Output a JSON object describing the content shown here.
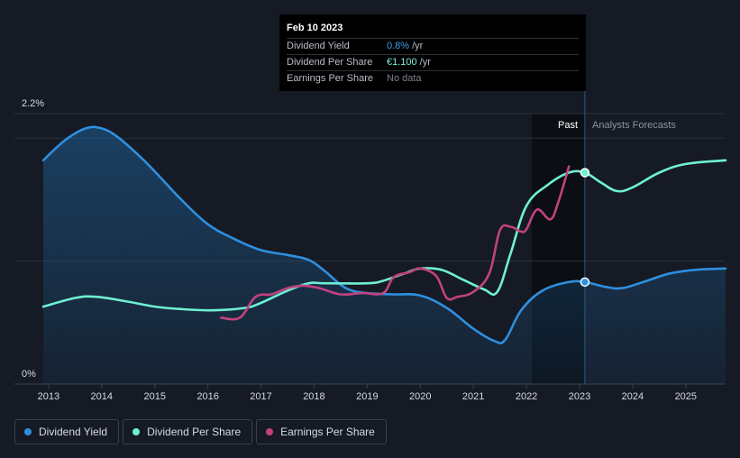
{
  "tooltip": {
    "date": "Feb 10 2023",
    "rows": [
      {
        "label": "Dividend Yield",
        "value": "0.8%",
        "unit": "/yr"
      },
      {
        "label": "Dividend Per Share",
        "value": "€1.100",
        "unit": "/yr"
      },
      {
        "label": "Earnings Per Share",
        "value": "No data",
        "unit": ""
      }
    ]
  },
  "legend": [
    {
      "label": "Dividend Yield",
      "color": "#2f8fdf"
    },
    {
      "label": "Dividend Per Share",
      "color": "#6ef0d2"
    },
    {
      "label": "Earnings Per Share",
      "color": "#c2427f"
    }
  ],
  "chart_data": {
    "type": "line",
    "title": "",
    "xlabel": "",
    "ylabel": "",
    "x_ticks": [
      "2013",
      "2014",
      "2015",
      "2016",
      "2017",
      "2018",
      "2019",
      "2020",
      "2021",
      "2022",
      "2023",
      "2024",
      "2025"
    ],
    "y_axis_labels": {
      "top": "2.2%",
      "bottom": "0%"
    },
    "ylim": [
      0,
      2.2
    ],
    "xlim": [
      2012.9,
      2025.75
    ],
    "region_labels": {
      "past": "Past",
      "forecast": "Analysts Forecasts"
    },
    "forecast_start": 2023.1,
    "highlight_start": 2022.1,
    "dps_ylim": [
      0,
      2.0
    ],
    "series": [
      {
        "name": "Dividend Yield",
        "color": "#2f8fdf",
        "points": [
          [
            2012.9,
            1.82
          ],
          [
            2013.3,
            1.98
          ],
          [
            2013.7,
            2.08
          ],
          [
            2014.0,
            2.08
          ],
          [
            2014.3,
            2.01
          ],
          [
            2014.7,
            1.86
          ],
          [
            2015.0,
            1.73
          ],
          [
            2015.5,
            1.5
          ],
          [
            2016.0,
            1.3
          ],
          [
            2016.5,
            1.18
          ],
          [
            2017.0,
            1.09
          ],
          [
            2017.5,
            1.05
          ],
          [
            2017.9,
            1.01
          ],
          [
            2018.2,
            0.92
          ],
          [
            2018.6,
            0.78
          ],
          [
            2019.0,
            0.74
          ],
          [
            2019.5,
            0.73
          ],
          [
            2020.0,
            0.72
          ],
          [
            2020.5,
            0.62
          ],
          [
            2021.0,
            0.45
          ],
          [
            2021.4,
            0.35
          ],
          [
            2021.6,
            0.36
          ],
          [
            2021.9,
            0.6
          ],
          [
            2022.3,
            0.76
          ],
          [
            2022.8,
            0.83
          ],
          [
            2023.1,
            0.83
          ],
          [
            2023.5,
            0.79
          ],
          [
            2023.8,
            0.78
          ],
          [
            2024.2,
            0.83
          ],
          [
            2024.7,
            0.9
          ],
          [
            2025.2,
            0.93
          ],
          [
            2025.75,
            0.94
          ]
        ]
      },
      {
        "name": "Dividend Per Share",
        "color": "#6ef0d2",
        "points": [
          [
            2012.9,
            0.63
          ],
          [
            2013.5,
            0.7
          ],
          [
            2013.9,
            0.71
          ],
          [
            2014.5,
            0.67
          ],
          [
            2015.0,
            0.63
          ],
          [
            2015.5,
            0.61
          ],
          [
            2016.1,
            0.6
          ],
          [
            2016.7,
            0.62
          ],
          [
            2017.0,
            0.66
          ],
          [
            2017.5,
            0.76
          ],
          [
            2017.9,
            0.82
          ],
          [
            2018.2,
            0.82
          ],
          [
            2019.0,
            0.82
          ],
          [
            2019.3,
            0.84
          ],
          [
            2019.7,
            0.9
          ],
          [
            2020.0,
            0.94
          ],
          [
            2020.4,
            0.93
          ],
          [
            2020.8,
            0.85
          ],
          [
            2021.2,
            0.77
          ],
          [
            2021.45,
            0.75
          ],
          [
            2021.7,
            1.06
          ],
          [
            2022.0,
            1.45
          ],
          [
            2022.4,
            1.62
          ],
          [
            2022.8,
            1.72
          ],
          [
            2023.1,
            1.72
          ],
          [
            2023.4,
            1.64
          ],
          [
            2023.7,
            1.57
          ],
          [
            2024.0,
            1.6
          ],
          [
            2024.5,
            1.72
          ],
          [
            2025.0,
            1.79
          ],
          [
            2025.75,
            1.82
          ]
        ]
      },
      {
        "name": "Earnings Per Share",
        "color": "#c2427f",
        "points": [
          [
            2016.25,
            0.54
          ],
          [
            2016.6,
            0.54
          ],
          [
            2016.9,
            0.71
          ],
          [
            2017.2,
            0.73
          ],
          [
            2017.5,
            0.78
          ],
          [
            2017.8,
            0.8
          ],
          [
            2018.1,
            0.78
          ],
          [
            2018.5,
            0.73
          ],
          [
            2018.9,
            0.74
          ],
          [
            2019.3,
            0.74
          ],
          [
            2019.5,
            0.87
          ],
          [
            2019.8,
            0.91
          ],
          [
            2020.0,
            0.94
          ],
          [
            2020.3,
            0.88
          ],
          [
            2020.5,
            0.7
          ],
          [
            2020.7,
            0.71
          ],
          [
            2021.0,
            0.75
          ],
          [
            2021.3,
            0.9
          ],
          [
            2021.5,
            1.25
          ],
          [
            2021.7,
            1.28
          ],
          [
            2021.9,
            1.24
          ],
          [
            2022.0,
            1.26
          ],
          [
            2022.2,
            1.42
          ],
          [
            2022.45,
            1.34
          ],
          [
            2022.6,
            1.48
          ],
          [
            2022.8,
            1.77
          ]
        ]
      }
    ],
    "markers": [
      {
        "series": "Dividend Yield",
        "x": 2023.1,
        "y": 0.83
      },
      {
        "series": "Dividend Per Share",
        "x": 2023.1,
        "y": 1.72
      }
    ]
  }
}
